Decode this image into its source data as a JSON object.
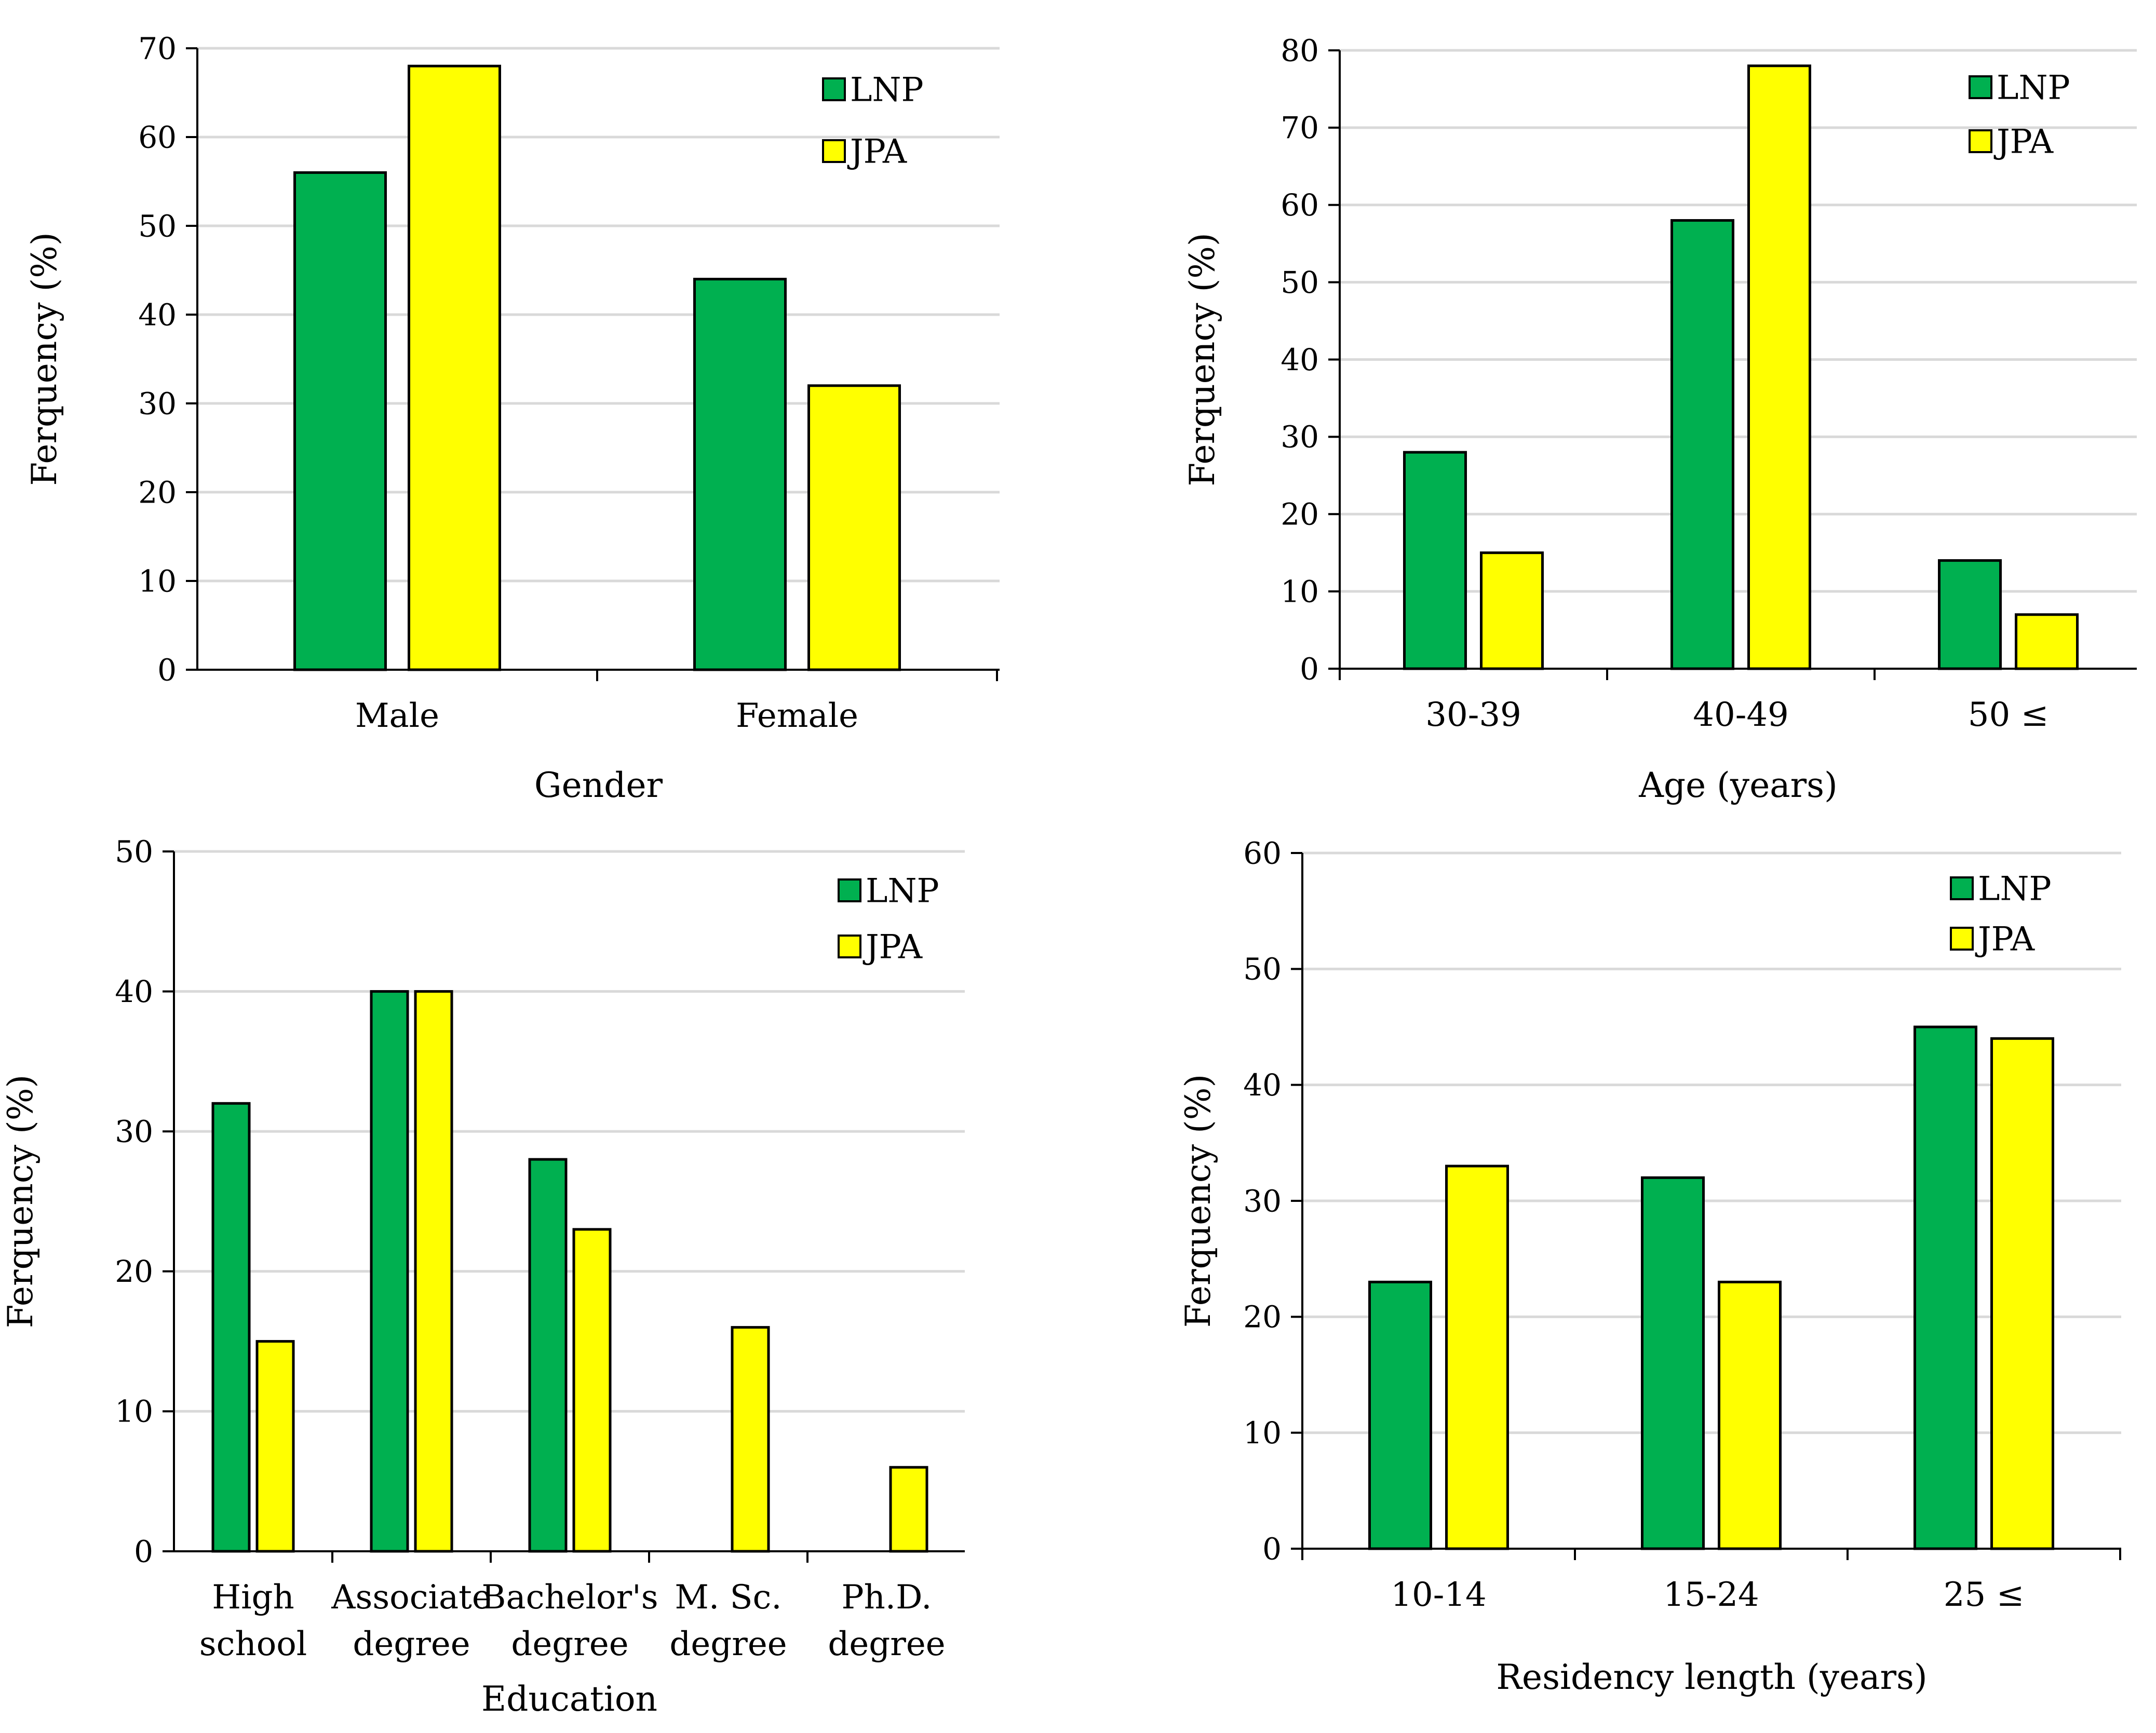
{
  "colors": {
    "series": [
      "#00B050",
      "#FFFF00"
    ],
    "gridline": "#D9D9D9",
    "axis": "#000000",
    "bar_border": "#000000"
  },
  "chart_data": [
    {
      "type": "bar",
      "title": "",
      "xlabel": "Gender",
      "ylabel": "Ferquency (%)",
      "ylim": [
        0,
        70
      ],
      "ytick_step": 10,
      "grid": true,
      "legend_position": "top-right",
      "categories": [
        [
          "Male"
        ],
        [
          "Female"
        ]
      ],
      "series": [
        {
          "name": "LNP",
          "values": [
            56,
            44
          ]
        },
        {
          "name": "JPA",
          "values": [
            68,
            32
          ]
        }
      ]
    },
    {
      "type": "bar",
      "title": "",
      "xlabel": "Age (years)",
      "ylabel": "Ferquency (%)",
      "ylim": [
        0,
        80
      ],
      "ytick_step": 10,
      "grid": true,
      "legend_position": "top-right",
      "categories": [
        [
          "30-39"
        ],
        [
          "40-49"
        ],
        [
          "50 ≤"
        ]
      ],
      "series": [
        {
          "name": "LNP",
          "values": [
            28,
            58,
            14
          ]
        },
        {
          "name": "JPA",
          "values": [
            15,
            78,
            7
          ]
        }
      ]
    },
    {
      "type": "bar",
      "title": "",
      "xlabel": "Education",
      "ylabel": "Ferquency (%)",
      "ylim": [
        0,
        50
      ],
      "ytick_step": 10,
      "grid": true,
      "legend_position": "top-right",
      "categories": [
        [
          "High",
          "school"
        ],
        [
          "Associate",
          "degree"
        ],
        [
          "Bachelor's",
          "degree"
        ],
        [
          "M. Sc.",
          "degree"
        ],
        [
          "Ph.D.",
          "degree"
        ]
      ],
      "series": [
        {
          "name": "LNP",
          "values": [
            32,
            40,
            28,
            0,
            0
          ]
        },
        {
          "name": "JPA",
          "values": [
            15,
            40,
            23,
            16,
            6
          ]
        }
      ]
    },
    {
      "type": "bar",
      "title": "",
      "xlabel": "Residency length (years)",
      "ylabel": "Ferquency (%)",
      "ylim": [
        0,
        60
      ],
      "ytick_step": 10,
      "grid": true,
      "legend_position": "top-right",
      "categories": [
        [
          "10-14"
        ],
        [
          "15-24"
        ],
        [
          "25 ≤"
        ]
      ],
      "series": [
        {
          "name": "LNP",
          "values": [
            23,
            32,
            45
          ]
        },
        {
          "name": "JPA",
          "values": [
            33,
            23,
            44
          ]
        }
      ]
    }
  ]
}
